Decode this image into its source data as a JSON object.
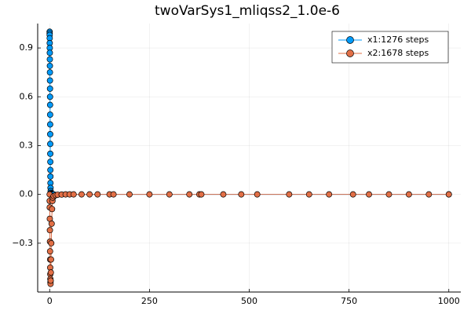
{
  "chart_data": {
    "type": "line",
    "title": "twoVarSys1_mliqss2_1.0e-6",
    "xlim": [
      -30,
      1030
    ],
    "ylim": [
      -0.6,
      1.05
    ],
    "xticks": [
      0,
      250,
      500,
      750,
      1000
    ],
    "yticks": [
      {
        "value": -0.3,
        "label": "−0.3"
      },
      {
        "value": 0,
        "label": "0.0"
      },
      0.3,
      0.6,
      0.9
    ],
    "grid": true,
    "legend": "top-right",
    "series": [
      {
        "name": "x1:1276 steps",
        "color": "#009af9",
        "x": [
          0,
          0.05,
          0.1,
          0.15,
          0.2,
          0.3,
          0.4,
          0.5,
          0.6,
          0.7,
          0.8,
          0.9,
          1.0,
          1.1,
          1.2,
          1.3,
          1.4,
          1.5,
          1.6,
          1.7,
          1.8,
          1.9,
          2.0,
          2.2,
          2.5,
          3,
          4,
          5,
          6,
          8,
          10,
          1000
        ],
        "values": [
          1.0,
          0.99,
          0.98,
          0.96,
          0.93,
          0.9,
          0.87,
          0.83,
          0.79,
          0.75,
          0.7,
          0.65,
          0.6,
          0.55,
          0.49,
          0.43,
          0.37,
          0.31,
          0.25,
          0.2,
          0.15,
          0.11,
          0.07,
          0.04,
          0.02,
          0.01,
          0.005,
          0.002,
          0.001,
          0.0005,
          0.0002,
          0
        ]
      },
      {
        "name": "x2:1678 steps",
        "color": "#e26f46",
        "x": [
          0,
          0.1,
          0.2,
          0.4,
          0.6,
          0.8,
          1.0,
          1.2,
          1.4,
          1.6,
          1.8,
          2.0,
          2.3,
          2.6,
          3,
          3.5,
          4,
          5,
          6,
          7,
          8,
          10,
          15,
          20,
          30,
          40,
          50,
          60,
          80,
          100,
          120,
          150,
          160,
          200,
          250,
          300,
          350,
          375,
          380,
          435,
          480,
          520,
          600,
          650,
          700,
          760,
          800,
          850,
          900,
          950,
          1000
        ],
        "values": [
          0,
          -0.04,
          -0.08,
          -0.15,
          -0.22,
          -0.29,
          -0.35,
          -0.4,
          -0.45,
          -0.49,
          -0.52,
          -0.54,
          -0.55,
          -0.53,
          -0.48,
          -0.4,
          -0.3,
          -0.18,
          -0.09,
          -0.04,
          -0.02,
          -0.01,
          -0.005,
          -0.002,
          -0.001,
          0,
          0,
          0,
          0,
          0,
          0,
          0,
          0,
          0,
          0,
          0,
          0,
          0,
          0,
          0,
          0,
          0,
          0,
          0,
          0,
          0,
          0,
          0,
          0,
          0,
          0
        ]
      }
    ]
  }
}
